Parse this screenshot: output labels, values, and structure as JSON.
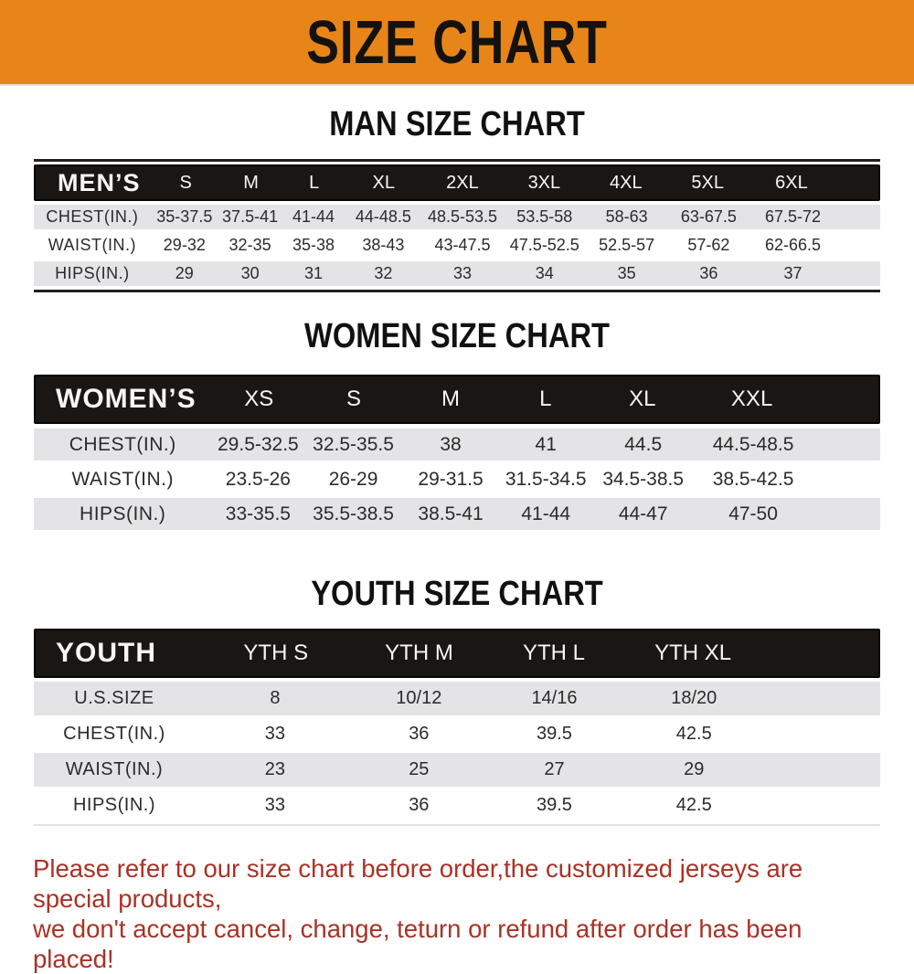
{
  "banner": {
    "title": "SIZE CHART"
  },
  "colors": {
    "banner_bg": "#E88519",
    "bar_bg": "#1A1613",
    "row_gray": "#E4E4E6",
    "notice_red": "#A93226"
  },
  "chart_data": [
    {
      "type": "table",
      "title": "MAN SIZE CHART",
      "columns": [
        "MEN’S",
        "S",
        "M",
        "L",
        "XL",
        "2XL",
        "3XL",
        "4XL",
        "5XL",
        "6XL"
      ],
      "rows": [
        [
          "CHEST(IN.)",
          "35-37.5",
          "37.5-41",
          "41-44",
          "44-48.5",
          "48.5-53.5",
          "53.5-58",
          "58-63",
          "63-67.5",
          "67.5-72"
        ],
        [
          "WAIST(IN.)",
          "29-32",
          "32-35",
          "35-38",
          "38-43",
          "43-47.5",
          "47.5-52.5",
          "52.5-57",
          "57-62",
          "62-66.5"
        ],
        [
          "HIPS(IN.)",
          "29",
          "30",
          "31",
          "32",
          "33",
          "34",
          "35",
          "36",
          "37"
        ]
      ]
    },
    {
      "type": "table",
      "title": "WOMEN SIZE CHART",
      "columns": [
        "WOMEN’S",
        "XS",
        "S",
        "M",
        "L",
        "XL",
        "XXL"
      ],
      "rows": [
        [
          "CHEST(IN.)",
          "29.5-32.5",
          "32.5-35.5",
          "38",
          "41",
          "44.5",
          "44.5-48.5"
        ],
        [
          "WAIST(IN.)",
          "23.5-26",
          "26-29",
          "29-31.5",
          "31.5-34.5",
          "34.5-38.5",
          "38.5-42.5"
        ],
        [
          "HIPS(IN.)",
          "33-35.5",
          "35.5-38.5",
          "38.5-41",
          "41-44",
          "44-47",
          "47-50"
        ]
      ]
    },
    {
      "type": "table",
      "title": "YOUTH SIZE CHART",
      "columns": [
        "YOUTH",
        "YTH S",
        "YTH M",
        "YTH L",
        "YTH XL"
      ],
      "rows": [
        [
          "U.S.SIZE",
          "8",
          "10/12",
          "14/16",
          "18/20"
        ],
        [
          "CHEST(IN.)",
          "33",
          "36",
          "39.5",
          "42.5"
        ],
        [
          "WAIST(IN.)",
          "23",
          "25",
          "27",
          "29"
        ],
        [
          "HIPS(IN.)",
          "33",
          "36",
          "39.5",
          "42.5"
        ]
      ]
    }
  ],
  "notice": {
    "line1": "Please refer to our size chart before order,the customized jerseys are special products,",
    "line2": "we don't accept cancel, change, teturn or refund after order has been placed!"
  }
}
